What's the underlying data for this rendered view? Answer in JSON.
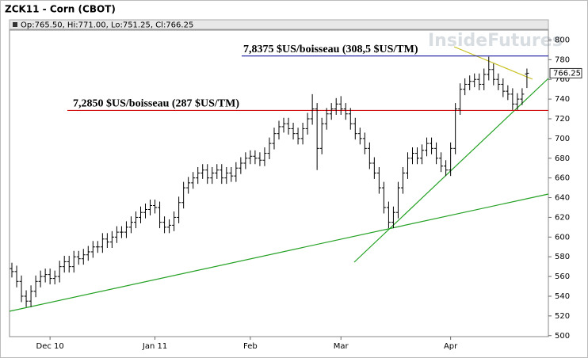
{
  "chart_data": {
    "type": "ohlc",
    "title": "ZCK11 - Corn (CBOT)",
    "info": "Op:765.50, Hi:771.00, Lo:751.25, Cl:766.25",
    "watermark": "InsideFutures",
    "categories": [
      null,
      null,
      null,
      null,
      null,
      null,
      null,
      null,
      "Dec 10",
      null,
      null,
      null,
      null,
      null,
      null,
      null,
      null,
      null,
      null,
      null,
      null,
      null,
      null,
      null,
      null,
      null,
      null,
      null,
      null,
      null,
      "Jan 11",
      null,
      null,
      null,
      null,
      null,
      null,
      null,
      null,
      null,
      null,
      null,
      null,
      null,
      null,
      null,
      null,
      null,
      null,
      null,
      "Feb",
      null,
      null,
      null,
      null,
      null,
      null,
      null,
      null,
      null,
      null,
      null,
      null,
      null,
      null,
      null,
      null,
      null,
      null,
      "Mar",
      null,
      null,
      null,
      null,
      null,
      null,
      null,
      null,
      null,
      null,
      null,
      null,
      null,
      null,
      null,
      null,
      null,
      null,
      null,
      null,
      null,
      null,
      "Apr",
      null,
      null,
      null,
      null,
      null,
      null,
      null,
      null,
      null,
      null,
      null,
      null,
      null,
      null,
      null,
      null,
      null,
      null,
      null,
      null
    ],
    "open": [
      568,
      565,
      555,
      540,
      535,
      545,
      555,
      560,
      562,
      558,
      560,
      570,
      575,
      570,
      580,
      578,
      582,
      585,
      590,
      590,
      598,
      595,
      600,
      605,
      605,
      610,
      615,
      620,
      625,
      628,
      632,
      630,
      615,
      610,
      612,
      620,
      635,
      650,
      655,
      660,
      665,
      668,
      660,
      665,
      668,
      660,
      665,
      662,
      670,
      675,
      680,
      682,
      680,
      678,
      685,
      695,
      705,
      712,
      715,
      710,
      705,
      700,
      710,
      720,
      730,
      690,
      715,
      725,
      730,
      735,
      730,
      725,
      715,
      705,
      700,
      690,
      675,
      665,
      650,
      630,
      615,
      625,
      650,
      665,
      680,
      685,
      680,
      688,
      695,
      690,
      680,
      672,
      668,
      690,
      730,
      750,
      755,
      758,
      760,
      755,
      765,
      770,
      760,
      755,
      748,
      745,
      735,
      740,
      765.5,
      null,
      null,
      null,
      null
    ],
    "high": [
      574,
      571,
      561,
      546,
      551,
      561,
      566,
      568,
      568,
      566,
      576,
      581,
      581,
      586,
      586,
      588,
      591,
      596,
      596,
      604,
      604,
      606,
      611,
      611,
      616,
      621,
      626,
      631,
      634,
      638,
      638,
      636,
      621,
      618,
      626,
      641,
      656,
      661,
      666,
      671,
      674,
      674,
      671,
      674,
      674,
      671,
      671,
      676,
      681,
      686,
      688,
      688,
      686,
      691,
      701,
      711,
      718,
      721,
      721,
      716,
      711,
      716,
      726,
      745,
      736,
      721,
      731,
      736,
      741,
      743,
      736,
      731,
      721,
      711,
      706,
      696,
      681,
      671,
      656,
      636,
      631,
      656,
      671,
      686,
      691,
      691,
      694,
      701,
      701,
      696,
      686,
      678,
      696,
      736,
      756,
      761,
      764,
      766,
      766,
      771,
      783,
      776,
      766,
      761,
      754,
      751,
      746,
      751,
      771,
      null,
      null,
      null,
      null
    ],
    "low": [
      559,
      549,
      534,
      529,
      529,
      539,
      549,
      554,
      552,
      552,
      554,
      564,
      564,
      564,
      572,
      572,
      576,
      579,
      584,
      584,
      589,
      589,
      594,
      599,
      599,
      604,
      609,
      614,
      619,
      622,
      624,
      609,
      604,
      604,
      606,
      614,
      629,
      644,
      649,
      654,
      659,
      654,
      654,
      659,
      654,
      654,
      656,
      656,
      664,
      669,
      674,
      674,
      672,
      672,
      679,
      689,
      699,
      706,
      704,
      699,
      694,
      694,
      704,
      714,
      668,
      684,
      709,
      719,
      724,
      724,
      719,
      709,
      699,
      694,
      684,
      669,
      659,
      644,
      624,
      609,
      609,
      619,
      644,
      659,
      674,
      674,
      674,
      682,
      684,
      674,
      666,
      662,
      662,
      684,
      724,
      744,
      749,
      752,
      749,
      749,
      759,
      754,
      749,
      742,
      739,
      729,
      729,
      734,
      751.25,
      null,
      null,
      null,
      null
    ],
    "close": [
      565,
      555,
      540,
      535,
      545,
      555,
      560,
      562,
      558,
      560,
      570,
      575,
      570,
      580,
      578,
      582,
      585,
      590,
      590,
      598,
      595,
      600,
      605,
      605,
      610,
      615,
      620,
      625,
      628,
      632,
      630,
      615,
      610,
      612,
      620,
      635,
      650,
      655,
      660,
      665,
      668,
      660,
      665,
      668,
      660,
      665,
      662,
      670,
      675,
      680,
      682,
      680,
      678,
      685,
      695,
      705,
      712,
      715,
      710,
      705,
      700,
      710,
      720,
      730,
      690,
      715,
      725,
      730,
      735,
      730,
      725,
      715,
      705,
      700,
      690,
      675,
      665,
      650,
      630,
      615,
      625,
      650,
      665,
      680,
      685,
      680,
      688,
      695,
      690,
      680,
      672,
      668,
      690,
      730,
      750,
      755,
      758,
      760,
      755,
      765,
      770,
      760,
      755,
      748,
      745,
      735,
      740,
      745,
      766.25,
      null,
      null,
      null,
      null
    ],
    "color": "#000000",
    "levels": [
      {
        "value": 783.75,
        "label": "7,8375 $US/boisseau (308,5 $US/TM)",
        "color": "#1a1aa0"
      },
      {
        "value": 728.5,
        "label": "7,2850 $US/boisseau (287 $US/TM)",
        "color": "#d01010"
      }
    ],
    "ylim": [
      499,
      810
    ],
    "yticks": [
      500,
      520,
      540,
      560,
      580,
      600,
      620,
      640,
      660,
      680,
      700,
      720,
      740,
      760,
      780,
      800
    ],
    "grid": false
  }
}
